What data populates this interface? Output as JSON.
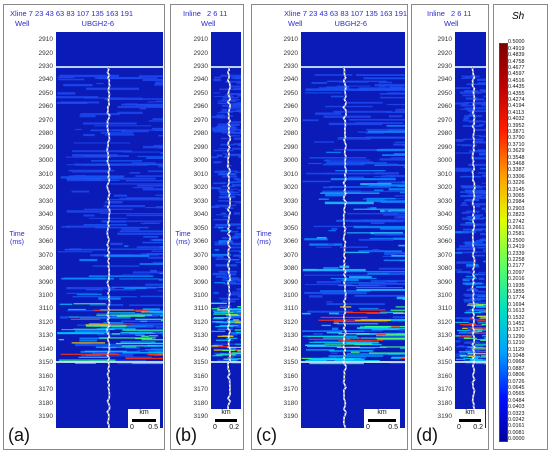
{
  "panels": [
    {
      "tag": "(a)",
      "header_label": "Xline",
      "header_values": "7 23 43 63 83 107 135 163 191",
      "well_label": "Well",
      "well_name": "UBGH2-6",
      "scale_unit": "km",
      "scale_start": "0",
      "scale_end": "0.5"
    },
    {
      "tag": "(b)",
      "header_label": "Inline",
      "header_values": "2 6 11",
      "well_label": "Well",
      "well_name": "",
      "scale_unit": "km",
      "scale_start": "0",
      "scale_end": "0.2"
    },
    {
      "tag": "(c)",
      "header_label": "Xline",
      "header_values": "7 23 43 63 83 107 135 163 191",
      "well_label": "Well",
      "well_name": "UBGH2-6",
      "scale_unit": "km",
      "scale_start": "0",
      "scale_end": "0.5"
    },
    {
      "tag": "(d)",
      "header_label": "Inline",
      "header_values": "2 6 11",
      "well_label": "Well",
      "well_name": "",
      "scale_unit": "km",
      "scale_start": "0",
      "scale_end": "0.2"
    }
  ],
  "time_axis": {
    "label_line1": "Time",
    "label_line2": "(ms)",
    "ticks": [
      "2910",
      "2920",
      "2930",
      "2940",
      "2950",
      "2960",
      "2970",
      "2980",
      "2990",
      "3000",
      "3010",
      "3020",
      "3030",
      "3040",
      "3050",
      "3060",
      "3070",
      "3080",
      "3090",
      "3100",
      "3110",
      "3120",
      "3130",
      "3140",
      "3150",
      "3160",
      "3170",
      "3180",
      "3190"
    ]
  },
  "colorbar": {
    "title": "Sh",
    "labels": [
      "0.5000",
      "0.4919",
      "0.4839",
      "0.4758",
      "0.4677",
      "0.4597",
      "0.4516",
      "0.4435",
      "0.4355",
      "0.4274",
      "0.4194",
      "0.4113",
      "0.4032",
      "0.3952",
      "0.3871",
      "0.3790",
      "0.3710",
      "0.3629",
      "0.3548",
      "0.3468",
      "0.3387",
      "0.3306",
      "0.3226",
      "0.3145",
      "0.3065",
      "0.2984",
      "0.2903",
      "0.2823",
      "0.2742",
      "0.2661",
      "0.2581",
      "0.2500",
      "0.2419",
      "0.2339",
      "0.2258",
      "0.2177",
      "0.2097",
      "0.2016",
      "0.1935",
      "0.1855",
      "0.1774",
      "0.1694",
      "0.1613",
      "0.1532",
      "0.1452",
      "0.1371",
      "0.1290",
      "0.1210",
      "0.1129",
      "0.1048",
      "0.0968",
      "0.0887",
      "0.0806",
      "0.0726",
      "0.0645",
      "0.0565",
      "0.0484",
      "0.0403",
      "0.0323",
      "0.0242",
      "0.0161",
      "0.0081",
      "0.0000"
    ],
    "colors": [
      "#0000a0",
      "#0010ff",
      "#00a0ff",
      "#00e0c0",
      "#60ff60",
      "#e0ff00",
      "#ffa000",
      "#ff2000",
      "#c00000",
      "#800000"
    ]
  }
}
